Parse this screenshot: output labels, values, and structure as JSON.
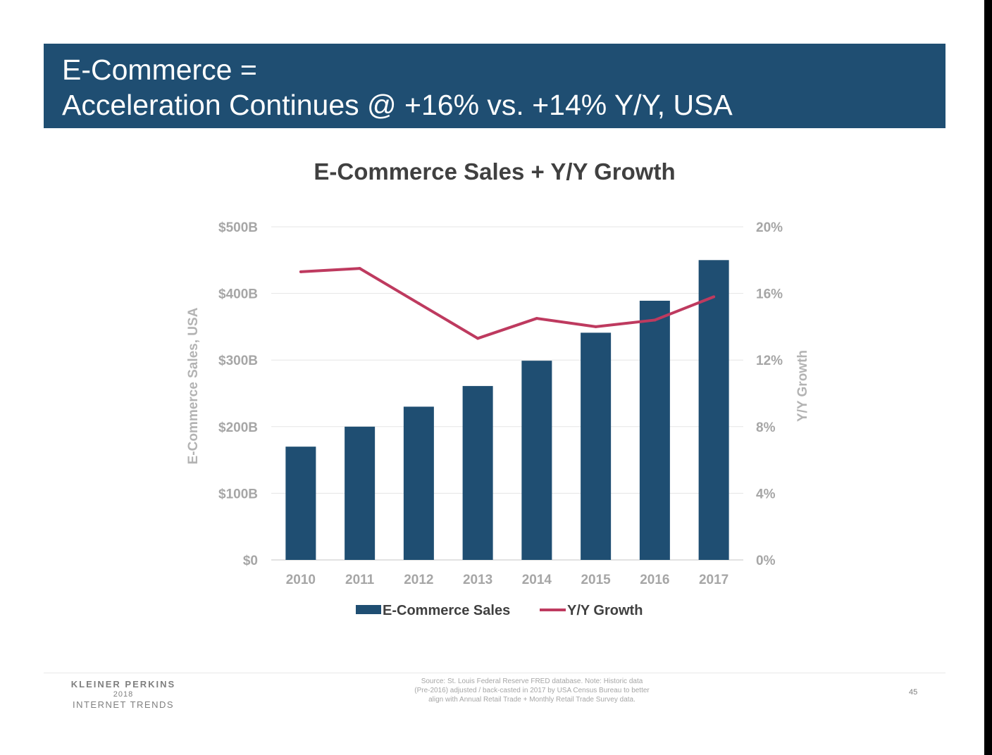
{
  "slide": {
    "title_line1": "E-Commerce =",
    "title_line2": "Acceleration Continues @ +16% vs. +14% Y/Y, USA",
    "page_number": "45"
  },
  "footer": {
    "brand_name": "KLEINER PERKINS",
    "brand_year": "2018",
    "brand_report": "INTERNET TRENDS",
    "source_line1": "Source: St. Louis Federal Reserve FRED database.  Note: Historic data",
    "source_line2": "(Pre-2016) adjusted / back-casted in 2017 by USA Census Bureau to better",
    "source_line3": "align with Annual Retail Trade + Monthly Retail Trade Survey data."
  },
  "chart_data": {
    "type": "bar+line",
    "title": "E-Commerce Sales + Y/Y Growth",
    "categories": [
      "2010",
      "2011",
      "2012",
      "2013",
      "2014",
      "2015",
      "2016",
      "2017"
    ],
    "series": [
      {
        "name": "E-Commerce Sales",
        "type": "bar",
        "axis": "left",
        "color": "#1f4e72",
        "values": [
          170,
          200,
          230,
          261,
          299,
          341,
          389,
          450
        ]
      },
      {
        "name": "Y/Y Growth",
        "type": "line",
        "axis": "right",
        "color": "#be3a5f",
        "values": [
          17.3,
          17.5,
          15.4,
          13.3,
          14.5,
          14.0,
          14.4,
          15.8
        ]
      }
    ],
    "ylabel": "E-Commerce Sales, USA",
    "y2label": "Y/Y Growth",
    "ylim": [
      0,
      500
    ],
    "y2lim": [
      0,
      20
    ],
    "yticks": [
      "$0",
      "$100B",
      "$200B",
      "$300B",
      "$400B",
      "$500B"
    ],
    "y2ticks": [
      "0%",
      "4%",
      "8%",
      "12%",
      "16%",
      "20%"
    ],
    "grid": true,
    "legend_position": "bottom"
  }
}
